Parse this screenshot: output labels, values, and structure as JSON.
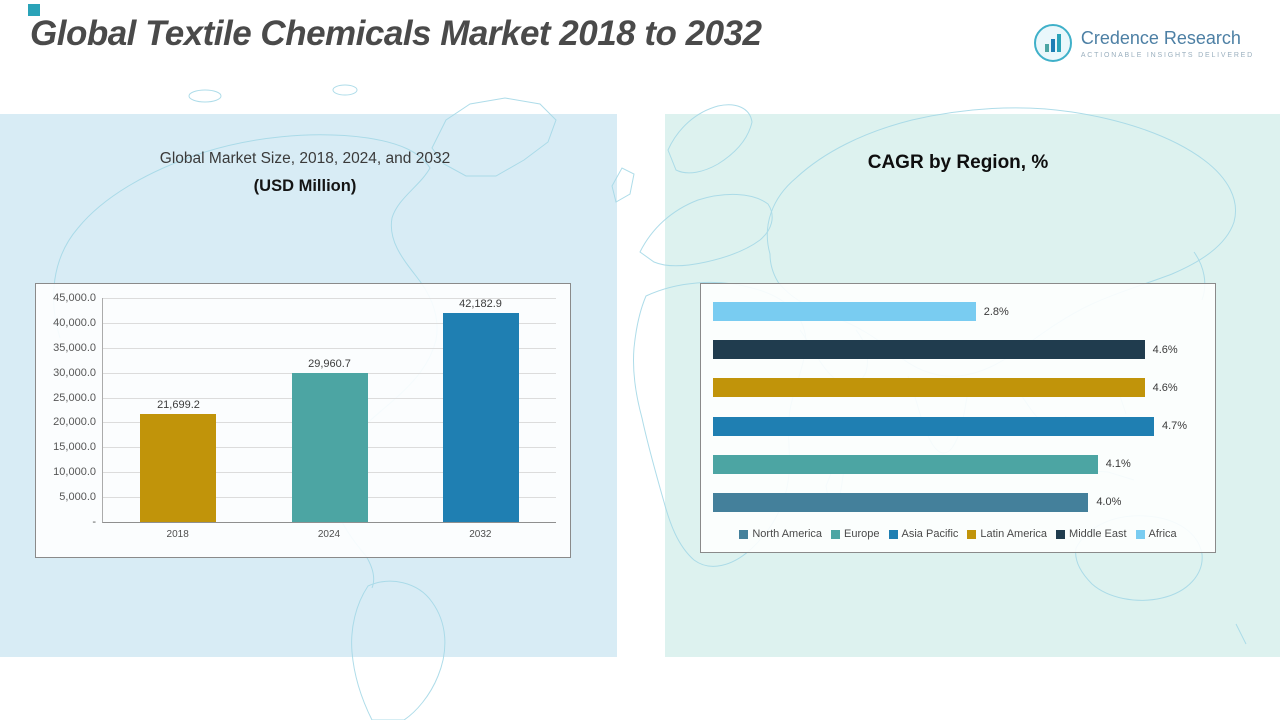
{
  "header": {
    "title": "Global Textile Chemicals Market 2018 to 2032",
    "logo": {
      "name": "Credence Research",
      "tagline": "Actionable Insights Delivered"
    }
  },
  "left_panel": {
    "subtitle": "Global Market Size, 2018, 2024, and 2032",
    "unit_label": "(USD Million)"
  },
  "right_panel": {
    "title": "CAGR by Region, %"
  },
  "chart_data": [
    {
      "type": "bar",
      "title": "Global Market Size, 2018, 2024, and 2032 (USD Million)",
      "categories": [
        "2018",
        "2024",
        "2032"
      ],
      "values": [
        21699.2,
        29960.7,
        42182.9
      ],
      "value_labels": [
        "21,699.2",
        "29,960.7",
        "42,182.9"
      ],
      "bar_colors": [
        "#C1940A",
        "#4CA5A3",
        "#1F7FB2"
      ],
      "xlabel": "",
      "ylabel": "USD Million",
      "ylim": [
        0,
        45000
      ],
      "yticks": [
        45000,
        40000,
        35000,
        30000,
        25000,
        20000,
        15000,
        10000,
        5000,
        0
      ],
      "ytick_labels": [
        "45,000.0",
        "40,000.0",
        "35,000.0",
        "30,000.0",
        "25,000.0",
        "20,000.0",
        "15,000.0",
        "10,000.0",
        "5,000.0",
        "-"
      ],
      "grid": true,
      "legend_position": "none"
    },
    {
      "type": "bar",
      "orientation": "horizontal",
      "title": "CAGR by Region, %",
      "categories": [
        "Africa",
        "Middle East",
        "Latin America",
        "Asia Pacific",
        "Europe",
        "North America"
      ],
      "values": [
        2.8,
        4.6,
        4.6,
        4.7,
        4.1,
        4.0
      ],
      "value_labels": [
        "2.8%",
        "4.6%",
        "4.6%",
        "4.7%",
        "4.1%",
        "4.0%"
      ],
      "bar_colors": [
        "#79CCF1",
        "#203C4E",
        "#C1940A",
        "#1F7FB2",
        "#4CA5A3",
        "#44809B"
      ],
      "xlim": [
        0,
        4.7
      ],
      "grid": false,
      "legend_position": "bottom",
      "legend": [
        {
          "label": "North America",
          "color": "#44809B"
        },
        {
          "label": "Europe",
          "color": "#4CA5A3"
        },
        {
          "label": "Asia Pacific",
          "color": "#1F7FB2"
        },
        {
          "label": "Latin America",
          "color": "#C1940A"
        },
        {
          "label": "Middle East",
          "color": "#203C4E"
        },
        {
          "label": "Africa",
          "color": "#79CCF1"
        }
      ]
    }
  ]
}
